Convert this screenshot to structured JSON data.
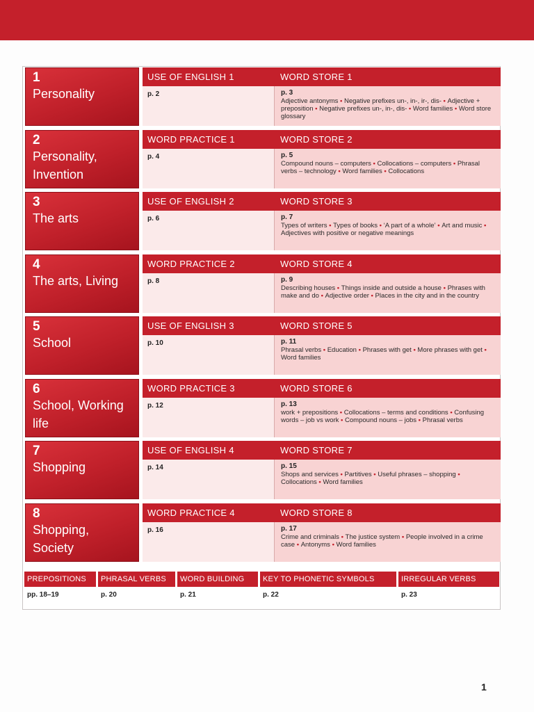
{
  "units": [
    {
      "number": "1",
      "title": "Personality",
      "col_a_head": "USE OF ENGLISH 1",
      "col_a_page": "p. 2",
      "col_b_head": "WORD STORE 1",
      "col_b_page": "p. 3",
      "topics": [
        "Adjective antonyms",
        "Negative prefixes un-, in-, ir-, dis-",
        "Adjective + preposition",
        "Negative prefixes un-, in-, dis-",
        "Word families",
        "Word store glossary"
      ]
    },
    {
      "number": "2",
      "title": "Personality, Invention",
      "col_a_head": "WORD PRACTICE 1",
      "col_a_page": "p. 4",
      "col_b_head": "WORD STORE 2",
      "col_b_page": "p. 5",
      "topics": [
        "Compound nouns – computers",
        "Collocations – computers",
        "Phrasal verbs – technology",
        "Word families",
        "Collocations"
      ]
    },
    {
      "number": "3",
      "title": "The arts",
      "col_a_head": "USE OF ENGLISH 2",
      "col_a_page": "p. 6",
      "col_b_head": "WORD STORE 3",
      "col_b_page": "p. 7",
      "topics": [
        "Types of writers",
        "Types of books",
        "‘A part of a whole’",
        "Art and music",
        "Adjectives with positive or negative meanings"
      ]
    },
    {
      "number": "4",
      "title": "The arts, Living",
      "col_a_head": "WORD PRACTICE 2",
      "col_a_page": "p. 8",
      "col_b_head": "WORD STORE 4",
      "col_b_page": "p. 9",
      "topics": [
        "Describing houses",
        "Things inside and outside a house",
        "Phrases with make and do",
        "Adjective order",
        "Places in the city and in the country"
      ]
    },
    {
      "number": "5",
      "title": "School",
      "col_a_head": "USE OF ENGLISH 3",
      "col_a_page": "p. 10",
      "col_b_head": "WORD STORE 5",
      "col_b_page": "p. 11",
      "topics": [
        "Phrasal verbs",
        "Education",
        "Phrases with get",
        "More phrases with get",
        "Word families"
      ]
    },
    {
      "number": "6",
      "title": "School, Working life",
      "col_a_head": "WORD PRACTICE 3",
      "col_a_page": "p. 12",
      "col_b_head": "WORD STORE 6",
      "col_b_page": "p. 13",
      "topics": [
        "work + prepositions",
        "Collocations – terms and conditions",
        "Confusing words – job vs work",
        "Compound nouns – jobs",
        "Phrasal verbs"
      ]
    },
    {
      "number": "7",
      "title": "Shopping",
      "col_a_head": "USE OF ENGLISH 4",
      "col_a_page": "p. 14",
      "col_b_head": "WORD STORE 7",
      "col_b_page": "p. 15",
      "topics": [
        "Shops and services",
        "Partitives",
        "Useful phrases – shopping",
        "Collocations",
        "Word families"
      ]
    },
    {
      "number": "8",
      "title": "Shopping, Society",
      "col_a_head": "WORD PRACTICE 4",
      "col_a_page": "p. 16",
      "col_b_head": "WORD STORE 8",
      "col_b_page": "p. 17",
      "topics": [
        "Crime and criminals",
        "The justice system",
        "People involved in a crime case",
        "Antonyms",
        "Word families"
      ]
    }
  ],
  "bottom_sections": [
    {
      "label": "PREPOSITIONS",
      "page": "pp. 18–19"
    },
    {
      "label": "PHRASAL VERBS",
      "page": "p. 20"
    },
    {
      "label": "WORD BUILDING",
      "page": "p. 21"
    },
    {
      "label": "KEY TO PHONETIC SYMBOLS",
      "page": "p. 22"
    },
    {
      "label": "IRREGULAR VERBS",
      "page": "p. 23"
    }
  ],
  "page_number": "1",
  "colors": {
    "accent": "#c4202b",
    "light_pink": "#f8d3d3",
    "pale_pink": "#fbeaea"
  }
}
